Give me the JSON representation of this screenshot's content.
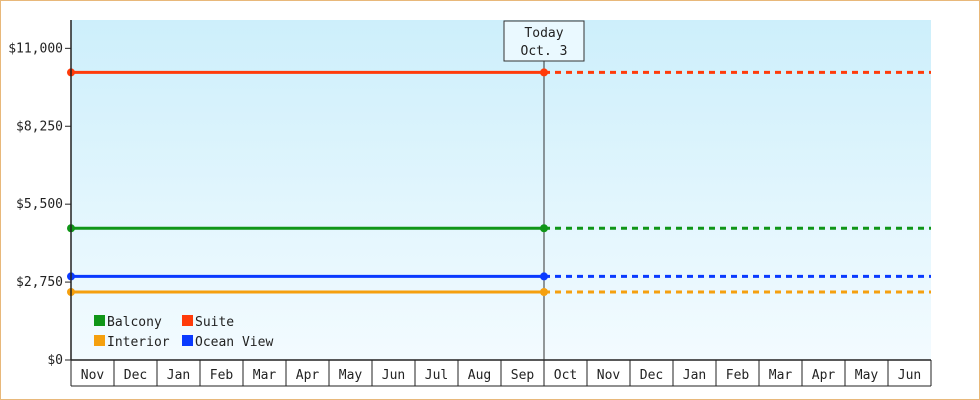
{
  "chart_data": {
    "type": "line",
    "title": "",
    "xlabel": "",
    "ylabel": "",
    "ylim": [
      0,
      12000
    ],
    "yticks": [
      {
        "value": 0,
        "label": "$0"
      },
      {
        "value": 2750,
        "label": "$2,750"
      },
      {
        "value": 5500,
        "label": "$5,500"
      },
      {
        "value": 8250,
        "label": "$8,250"
      },
      {
        "value": 11000,
        "label": "$11,000"
      }
    ],
    "months": [
      "Nov",
      "Dec",
      "Jan",
      "Feb",
      "Mar",
      "Apr",
      "May",
      "Jun",
      "Jul",
      "Aug",
      "Sep",
      "Oct",
      "Nov",
      "Dec",
      "Jan",
      "Feb",
      "Mar",
      "Apr",
      "May",
      "Jun"
    ],
    "today_index": 11,
    "today_annotation": {
      "line1": "Today",
      "line2": "Oct. 3"
    },
    "series": [
      {
        "name": "Balcony",
        "color": "#109618",
        "value": 4650
      },
      {
        "name": "Suite",
        "color": "#ff3b0a",
        "value": 10150
      },
      {
        "name": "Interior",
        "color": "#f5a00f",
        "value": 2400
      },
      {
        "name": "Ocean View",
        "color": "#0a3aff",
        "value": 2950
      }
    ],
    "legend": "bottom-left",
    "grid": false,
    "background_gradient": [
      "#cdeffb",
      "#f3fbff"
    ]
  }
}
